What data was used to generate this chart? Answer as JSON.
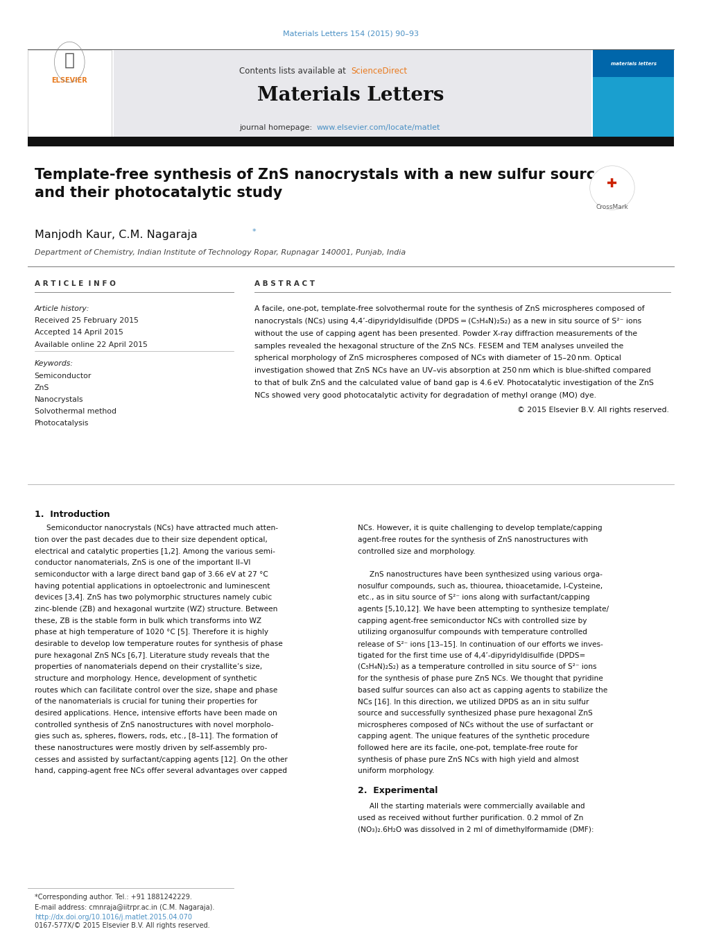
{
  "page_width": 9.92,
  "page_height": 13.23,
  "bg_color": "#ffffff",
  "journal_ref": "Materials Letters 154 (2015) 90–93",
  "journal_ref_color": "#4a90c4",
  "header_bg": "#e8e8ec",
  "header_text1": "Contents lists available at ",
  "header_sciencedirect": "ScienceDirect",
  "header_sd_color": "#e87a1e",
  "journal_title": "Materials Letters",
  "journal_homepage_text": "journal homepage: ",
  "journal_url": "www.elsevier.com/locate/matlet",
  "journal_url_color": "#4a90c4",
  "separator_color": "#2c2c2c",
  "paper_title": "Template-free synthesis of ZnS nanocrystals with a new sulfur source\nand their photocatalytic study",
  "paper_title_fontsize": 16,
  "authors": "Manjodh Kaur, C.M. Nagaraja",
  "authors_fontsize": 13,
  "affiliation": "Department of Chemistry, Indian Institute of Technology Ropar, Rupnagar 140001, Punjab, India",
  "affiliation_fontsize": 9,
  "article_info_header": "A R T I C L E  I N F O",
  "abstract_header": "A B S T R A C T",
  "article_history_label": "Article history:",
  "received": "Received 25 February 2015",
  "accepted": "Accepted 14 April 2015",
  "available": "Available online 22 April 2015",
  "keywords_label": "Keywords:",
  "keywords": [
    "Semiconductor",
    "ZnS",
    "Nanocrystals",
    "Solvothermal method",
    "Photocatalysis"
  ],
  "abstract_text": "A facile, one-pot, template-free solvothermal route for the synthesis of ZnS microspheres composed of\nnanocrystals (NCs) using 4,4’-dipyridyldisulfide (DPDS = (C₅H₄N)₂S₂) as a new in situ source of S²⁻ ions\nwithout the use of capping agent has been presented. Powder X-ray diffraction measurements of the\nsamples revealed the hexagonal structure of the ZnS NCs. FESEM and TEM analyses unveiled the\nspherical morphology of ZnS microspheres composed of NCs with diameter of 15–20 nm. Optical\ninvestigation showed that ZnS NCs have an UV–vis absorption at 250 nm which is blue-shifted compared\nto that of bulk ZnS and the calculated value of band gap is 4.6 eV. Photocatalytic investigation of the ZnS\nNCs showed very good photocatalytic activity for degradation of methyl orange (MO) dye.",
  "copyright": "© 2015 Elsevier B.V. All rights reserved.",
  "intro_header": "1.  Introduction",
  "intro_col1_lines": [
    "     Semiconductor nanocrystals (NCs) have attracted much atten-",
    "tion over the past decades due to their size dependent optical,",
    "electrical and catalytic properties [1,2]. Among the various semi-",
    "conductor nanomaterials, ZnS is one of the important II–VI",
    "semiconductor with a large direct band gap of 3.66 eV at 27 °C",
    "having potential applications in optoelectronic and luminescent",
    "devices [3,4]. ZnS has two polymorphic structures namely cubic",
    "zinc-blende (ZB) and hexagonal wurtzite (WZ) structure. Between",
    "these, ZB is the stable form in bulk which transforms into WZ",
    "phase at high temperature of 1020 °C [5]. Therefore it is highly",
    "desirable to develop low temperature routes for synthesis of phase",
    "pure hexagonal ZnS NCs [6,7]. Literature study reveals that the",
    "properties of nanomaterials depend on their crystallite’s size,",
    "structure and morphology. Hence, development of synthetic",
    "routes which can facilitate control over the size, shape and phase",
    "of the nanomaterials is crucial for tuning their properties for",
    "desired applications. Hence, intensive efforts have been made on",
    "controlled synthesis of ZnS nanostructures with novel morpholo-",
    "gies such as, spheres, flowers, rods, etc., [8–11]. The formation of",
    "these nanostructures were mostly driven by self-assembly pro-",
    "cesses and assisted by surfactant/capping agents [12]. On the other",
    "hand, capping-agent free NCs offer several advantages over capped"
  ],
  "intro_col2_lines": [
    "NCs. However, it is quite challenging to develop template/capping",
    "agent-free routes for the synthesis of ZnS nanostructures with",
    "controlled size and morphology.",
    "",
    "     ZnS nanostructures have been synthesized using various orga-",
    "nosulfur compounds, such as, thiourea, thioacetamide, l-Cysteine,",
    "etc., as in situ source of S²⁻ ions along with surfactant/capping",
    "agents [5,10,12]. We have been attempting to synthesize template/",
    "capping agent-free semiconductor NCs with controlled size by",
    "utilizing organosulfur compounds with temperature controlled",
    "release of S²⁻ ions [13–15]. In continuation of our efforts we inves-",
    "tigated for the first time use of 4,4’-dipyridyldisulfide (DPDS=",
    "(C₅H₄N)₂S₂) as a temperature controlled in situ source of S²⁻ ions",
    "for the synthesis of phase pure ZnS NCs. We thought that pyridine",
    "based sulfur sources can also act as capping agents to stabilize the",
    "NCs [16]. In this direction, we utilized DPDS as an in situ sulfur",
    "source and successfully synthesized phase pure hexagonal ZnS",
    "microspheres composed of NCs without the use of surfactant or",
    "capping agent. The unique features of the synthetic procedure",
    "followed here are its facile, one-pot, template-free route for",
    "synthesis of phase pure ZnS NCs with high yield and almost",
    "uniform morphology."
  ],
  "experimental_header": "2.  Experimental",
  "experimental_col2_lines": [
    "     All the starting materials were commercially available and",
    "used as received without further purification. 0.2 mmol of Zn",
    "(NO₃)₂.6H₂O was dissolved in 2 ml of dimethylformamide (DMF):"
  ],
  "footnote_star": "*Corresponding author. Tel.: +91 1881242229.",
  "footnote_email": "E-mail address: cmnraja@iitrpr.ac.in (C.M. Nagaraja).",
  "footnote_doi": "http://dx.doi.org/10.1016/j.matlet.2015.04.070",
  "footnote_issn": "0167-577X/© 2015 Elsevier B.V. All rights reserved.",
  "text_color": "#000000",
  "light_text_color": "#333333",
  "italic_color": "#222222",
  "col_split": 0.345
}
